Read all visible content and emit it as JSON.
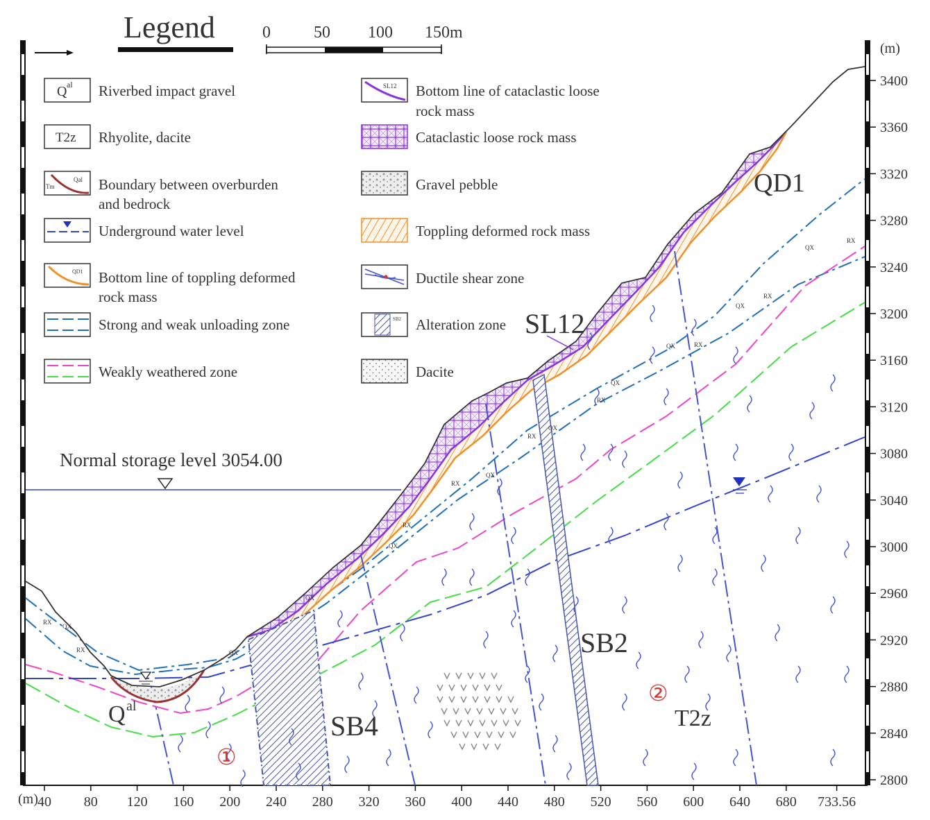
{
  "legend": {
    "title": "Legend",
    "scale": {
      "labels": [
        "0",
        "50",
        "100",
        "150m"
      ]
    },
    "items": [
      {
        "key": "riverbed",
        "symbol_text": "Q",
        "symbol_sup": "al",
        "lines": [
          "Riverbed impact gravel"
        ]
      },
      {
        "key": "rhyolite",
        "symbol_text": "T2z",
        "lines": [
          "Rhyolite, dacite"
        ]
      },
      {
        "key": "boundary",
        "symbol_text": "Tm",
        "symbol_text2": "Qal",
        "lines": [
          "Boundary between overburden",
          "and bedrock"
        ]
      },
      {
        "key": "water",
        "lines": [
          "Underground water level"
        ]
      },
      {
        "key": "topbottom",
        "symbol_text": "QD1",
        "lines": [
          "Bottom line of toppling deformed",
          "rock mass"
        ]
      },
      {
        "key": "unloading",
        "lines": [
          "Strong and weak unloading zone"
        ]
      },
      {
        "key": "weathered",
        "lines": [
          "Weakly weathered zone"
        ]
      },
      {
        "key": "catabottom",
        "symbol_text": "SL12",
        "lines": [
          "Bottom line of cataclastic loose",
          "rock mass"
        ]
      },
      {
        "key": "cataclastic",
        "lines": [
          "Cataclastic loose rock mass"
        ]
      },
      {
        "key": "gravel",
        "lines": [
          "Gravel pebble"
        ]
      },
      {
        "key": "toppling",
        "lines": [
          "Toppling deformed rock mass"
        ]
      },
      {
        "key": "ductile",
        "lines": [
          "Ductile shear zone"
        ]
      },
      {
        "key": "alteration",
        "symbol_text": "SB2",
        "lines": [
          "Alteration zone"
        ]
      },
      {
        "key": "dacite",
        "lines": [
          "Dacite"
        ]
      }
    ]
  },
  "section": {
    "storage_label": "Normal storage level 3054.00",
    "storage_level": 3054,
    "x_unit": "(m)",
    "y_unit": "(m)",
    "x_ticks": [
      "40",
      "80",
      "120",
      "160",
      "200",
      "240",
      "280",
      "320",
      "360",
      "400",
      "440",
      "480",
      "520",
      "560",
      "600",
      "640",
      "680",
      "733.56"
    ],
    "y_ticks": [
      "3400",
      "3360",
      "3320",
      "3280",
      "3240",
      "3200",
      "3160",
      "3120",
      "3080",
      "3040",
      "3000",
      "2960",
      "2920",
      "2880",
      "2840",
      "2800"
    ],
    "labels": {
      "qd1": "QD1",
      "sl12": "SL12",
      "sb2": "SB2",
      "sb4": "SB4",
      "zone1": "①",
      "zone2": "②",
      "t2z": "T2z",
      "qal": "Q",
      "qal_sup": "al",
      "unload_strong": "QX",
      "unload_weak": "RX"
    }
  },
  "colors": {
    "ground": "#333333",
    "storage": "#3344cc",
    "water": "#3344cc",
    "unloading": "#1f6fb8",
    "weathered_pink": "#ee44cc",
    "weathered_green": "#44dd44",
    "toppling": "#f0902a",
    "cataclastic": "#8833dd",
    "fault": "#4455cc",
    "alteration": "#4455aa",
    "boundary": "#993333",
    "zone_mark": "#e03030",
    "label_grey": "#666677"
  }
}
